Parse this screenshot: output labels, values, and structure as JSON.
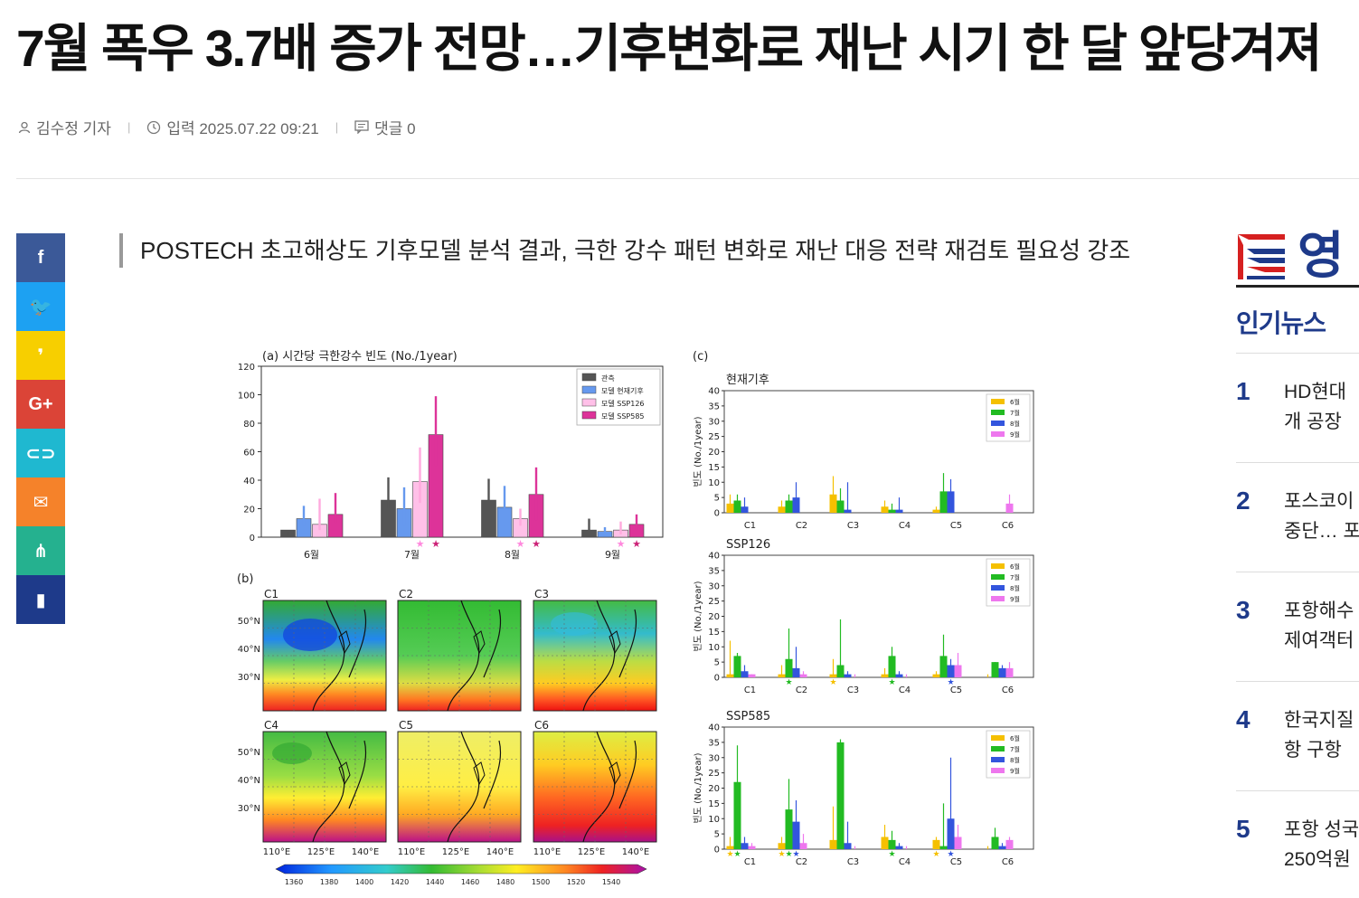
{
  "article": {
    "title": "7월 폭우 3.7배 증가 전망…기후변화로 재난 시기 한 달 앞당겨져",
    "author": "김수정 기자",
    "date": "입력 2025.07.22 09:21",
    "comments": "댓글 0",
    "subtitle": "POSTECH 초고해상도 기후모델 분석 결과, 극한 강수 패턴 변화로 재난 대응 전략 재검토 필요성 강조"
  },
  "share_buttons": [
    {
      "name": "facebook-icon",
      "glyph": "f",
      "color": "#3b5998"
    },
    {
      "name": "twitter-icon",
      "glyph": "🐦",
      "color": "#1da1f2"
    },
    {
      "name": "kakaostory-icon",
      "glyph": "❜",
      "color": "#f7cf00"
    },
    {
      "name": "googleplus-icon",
      "glyph": "G+",
      "color": "#db4437"
    },
    {
      "name": "link-icon",
      "glyph": "⊂⊃",
      "color": "#1fb8d0"
    },
    {
      "name": "email-icon",
      "glyph": "✉",
      "color": "#f5822a"
    },
    {
      "name": "share-icon",
      "glyph": "⋔",
      "color": "#25b18f"
    },
    {
      "name": "bookmark-icon",
      "glyph": "▮",
      "color": "#1e3a8a"
    }
  ],
  "sidebar": {
    "logo_text": "영",
    "popular_title": "인기뉴스",
    "popular": [
      {
        "num": "1",
        "line1": "HD현대",
        "line2": "개 공장"
      },
      {
        "num": "2",
        "line1": "포스코이",
        "line2": "중단… 포"
      },
      {
        "num": "3",
        "line1": "포항해수",
        "line2": "제여객터"
      },
      {
        "num": "4",
        "line1": "한국지질",
        "line2": "항 구항"
      },
      {
        "num": "5",
        "line1": "포항 성국",
        "line2": "250억원"
      }
    ]
  },
  "chart_data": [
    {
      "type": "bar",
      "title": "(a) 시간당 극한강수 빈도 (No./1year)",
      "categories": [
        "6월",
        "7월",
        "8월",
        "9월"
      ],
      "ylim": [
        0,
        120
      ],
      "yticks": [
        0,
        20,
        40,
        60,
        80,
        100,
        120
      ],
      "legend_position": "top-right",
      "series": [
        {
          "name": "관측",
          "color": "#555555",
          "values": [
            5,
            26,
            26,
            5
          ],
          "err": [
            [
              1,
              4
            ],
            [
              20,
              42
            ],
            [
              20,
              41
            ],
            [
              1,
              13
            ]
          ]
        },
        {
          "name": "모델 현재기후",
          "color": "#6699ee",
          "values": [
            13,
            20,
            21,
            4
          ],
          "err": [
            [
              8,
              22
            ],
            [
              8,
              35
            ],
            [
              8,
              36
            ],
            [
              1,
              7
            ]
          ]
        },
        {
          "name": "모델 SSP126",
          "color": "#ffc0e8",
          "values": [
            9,
            39,
            13,
            5
          ],
          "err": [
            [
              5,
              27
            ],
            [
              24,
              63
            ],
            [
              8,
              20
            ],
            [
              2,
              11
            ]
          ]
        },
        {
          "name": "모델 SSP585",
          "color": "#dd3399",
          "values": [
            16,
            72,
            30,
            9
          ],
          "err": [
            [
              10,
              31
            ],
            [
              50,
              99
            ],
            [
              12,
              49
            ],
            [
              5,
              16
            ]
          ]
        }
      ],
      "markers": [
        {
          "category": "7월",
          "series": "모델 SSP126",
          "symbol": "★"
        },
        {
          "category": "7월",
          "series": "모델 SSP585",
          "symbol": "★"
        },
        {
          "category": "8월",
          "series": "모델 SSP126",
          "symbol": "★"
        },
        {
          "category": "8월",
          "series": "모델 SSP585",
          "symbol": "★"
        },
        {
          "category": "9월",
          "series": "모델 SSP126",
          "symbol": "★"
        },
        {
          "category": "9월",
          "series": "모델 SSP585",
          "symbol": "★"
        }
      ]
    },
    {
      "type": "heatmap",
      "title": "(b)",
      "panels": [
        "C1",
        "C2",
        "C3",
        "C4",
        "C5",
        "C6"
      ],
      "lat_labels": [
        "50°N",
        "40°N",
        "30°N"
      ],
      "lon_labels": [
        "110°E",
        "125°E",
        "140°E"
      ],
      "colorbar_ticks": [
        "1360",
        "1380",
        "1400",
        "1420",
        "1440",
        "1460",
        "1480",
        "1500",
        "1520",
        "1540"
      ]
    },
    {
      "type": "bar",
      "title": "(c)",
      "categories": [
        "C1",
        "C2",
        "C3",
        "C4",
        "C5",
        "C6"
      ],
      "ylabel": "빈도 (No./1year)",
      "ylim": [
        0,
        40
      ],
      "yticks": [
        0,
        5,
        10,
        15,
        20,
        25,
        30,
        35,
        40
      ],
      "legend": [
        {
          "name": "6월",
          "color": "#f5c000"
        },
        {
          "name": "7월",
          "color": "#22bb22"
        },
        {
          "name": "8월",
          "color": "#3355dd"
        },
        {
          "name": "9월",
          "color": "#ee77ee"
        }
      ],
      "panels": [
        {
          "name": "현재기후",
          "values": [
            [
              3,
              4,
              2,
              0
            ],
            [
              2,
              4,
              5,
              0
            ],
            [
              6,
              4,
              1,
              0
            ],
            [
              2,
              1,
              1,
              0
            ],
            [
              1,
              7,
              7,
              0
            ],
            [
              0,
              0,
              0,
              3
            ]
          ],
          "errtop": [
            [
              6,
              6,
              5,
              0
            ],
            [
              4,
              6,
              10,
              0
            ],
            [
              12,
              8,
              10,
              0
            ],
            [
              4,
              3,
              5,
              0
            ],
            [
              2,
              13,
              11,
              0
            ],
            [
              0,
              0,
              0,
              6
            ]
          ],
          "stars": []
        },
        {
          "name": "SSP126",
          "values": [
            [
              1,
              7,
              2,
              1
            ],
            [
              1,
              6,
              3,
              1
            ],
            [
              1,
              4,
              1,
              0
            ],
            [
              1,
              7,
              1,
              0
            ],
            [
              1,
              7,
              4,
              4
            ],
            [
              0,
              5,
              3,
              3
            ]
          ],
          "errtop": [
            [
              12,
              8,
              4,
              1
            ],
            [
              4,
              16,
              10,
              2
            ],
            [
              6,
              19,
              2,
              1
            ],
            [
              3,
              10,
              2,
              1
            ],
            [
              2,
              14,
              6,
              8
            ],
            [
              1,
              5,
              4,
              5
            ]
          ],
          "stars": [
            {
              "cat": "C2",
              "month": "7월"
            },
            {
              "cat": "C3",
              "month": "6월"
            },
            {
              "cat": "C4",
              "month": "7월"
            },
            {
              "cat": "C5",
              "month": "8월"
            }
          ]
        },
        {
          "name": "SSP585",
          "values": [
            [
              1,
              22,
              2,
              1
            ],
            [
              2,
              13,
              9,
              2
            ],
            [
              3,
              35,
              2,
              0
            ],
            [
              4,
              3,
              1,
              0
            ],
            [
              3,
              1,
              10,
              4
            ],
            [
              0,
              4,
              1,
              3
            ]
          ],
          "errtop": [
            [
              4,
              34,
              4,
              2
            ],
            [
              4,
              23,
              16,
              5
            ],
            [
              14,
              36,
              9,
              1
            ],
            [
              8,
              6,
              2,
              1
            ],
            [
              4,
              15,
              30,
              8
            ],
            [
              1,
              7,
              2,
              4
            ]
          ],
          "stars": [
            {
              "cat": "C1",
              "month": "6월"
            },
            {
              "cat": "C1",
              "month": "7월"
            },
            {
              "cat": "C2",
              "month": "6월"
            },
            {
              "cat": "C2",
              "month": "7월"
            },
            {
              "cat": "C2",
              "month": "8월"
            },
            {
              "cat": "C4",
              "month": "7월"
            },
            {
              "cat": "C5",
              "month": "6월"
            },
            {
              "cat": "C5",
              "month": "8월"
            }
          ]
        }
      ]
    }
  ]
}
